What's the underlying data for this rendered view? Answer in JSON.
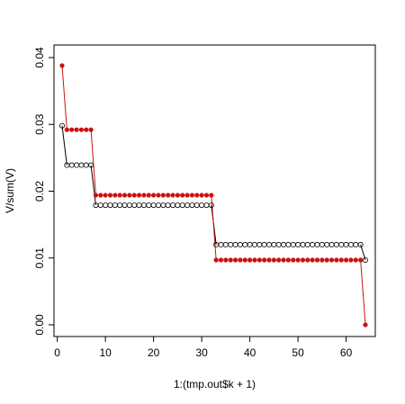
{
  "chart_data": {
    "type": "scatter",
    "title": "",
    "xlabel": "1:(tmp.out$k + 1)",
    "ylabel": "V/sum(V)",
    "xlim": [
      0,
      65
    ],
    "ylim": [
      0,
      0.04
    ],
    "x_ticks": [
      "0",
      "10",
      "20",
      "30",
      "40",
      "50",
      "60"
    ],
    "y_ticks": [
      "0.00",
      "0.01",
      "0.02",
      "0.03",
      "0.04"
    ],
    "grid": false,
    "legend": "none",
    "series": [
      {
        "style": "open-circles",
        "color": "#000000",
        "segments": [
          {
            "from": 1,
            "to": 1,
            "value": 0.0298
          },
          {
            "from": 2,
            "to": 7,
            "value": 0.0239
          },
          {
            "from": 8,
            "to": 32,
            "value": 0.0179
          },
          {
            "from": 33,
            "to": 63,
            "value": 0.012
          },
          {
            "from": 64,
            "to": 64,
            "value": 0.0097
          }
        ]
      },
      {
        "style": "filled-circles",
        "color": "#cc1111",
        "segments": [
          {
            "from": 1,
            "to": 1,
            "value": 0.0388
          },
          {
            "from": 2,
            "to": 7,
            "value": 0.0292
          },
          {
            "from": 8,
            "to": 32,
            "value": 0.0194
          },
          {
            "from": 33,
            "to": 63,
            "value": 0.0097
          },
          {
            "from": 64,
            "to": 64,
            "value": 0.0
          }
        ]
      }
    ]
  }
}
